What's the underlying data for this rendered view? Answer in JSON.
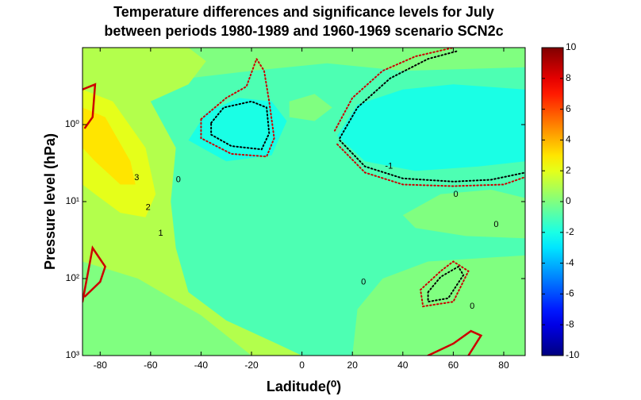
{
  "chart_data": {
    "type": "contour",
    "title": [
      "Temperature differences and significance levels for July",
      "between periods 1980-1989 and 1960-1969 scenario SCN2c"
    ],
    "x_label": "Laditude(⁰)",
    "y_label": "Pressure level (hPa)",
    "xlim": [
      -87,
      88.5
    ],
    "xticks": [
      -80,
      -60,
      -40,
      -20,
      0,
      20,
      40,
      60,
      80
    ],
    "ylim": [
      0.1,
      1000
    ],
    "y_log": true,
    "y_reversed": true,
    "yticks": [
      {
        "value": 1,
        "label": "10⁰"
      },
      {
        "value": 10,
        "label": "10¹"
      },
      {
        "value": 100,
        "label": "10²"
      },
      {
        "value": 1000,
        "label": "10³"
      }
    ],
    "colormap": "jet",
    "clim": [
      -10,
      10
    ],
    "cticks": [
      -10,
      -8,
      -6,
      -4,
      -2,
      0,
      2,
      4,
      6,
      8,
      10
    ],
    "background_value": -1,
    "regions": [
      {
        "value": 0,
        "points": [
          [
            -87,
            0.1
          ],
          [
            88.5,
            0.1
          ],
          [
            88.5,
            0.18
          ],
          [
            40,
            0.2
          ],
          [
            10,
            0.16
          ],
          [
            -20,
            0.2
          ],
          [
            -45,
            0.25
          ],
          [
            -87,
            0.3
          ]
        ]
      },
      {
        "value": 1,
        "points": [
          [
            -87,
            0.1
          ],
          [
            -45,
            0.1
          ],
          [
            -38,
            0.15
          ],
          [
            -45,
            0.3
          ],
          [
            -60,
            0.5
          ],
          [
            -50,
            2
          ],
          [
            -52,
            10
          ],
          [
            -50,
            40
          ],
          [
            -45,
            150
          ],
          [
            -30,
            350
          ],
          [
            -10,
            700
          ],
          [
            0,
            1000
          ],
          [
            -87,
            1000
          ]
        ]
      },
      {
        "value": 2,
        "points": [
          [
            -87,
            0.35
          ],
          [
            -75,
            0.5
          ],
          [
            -62,
            2
          ],
          [
            -58,
            8
          ],
          [
            -62,
            16
          ],
          [
            -72,
            14
          ],
          [
            -82,
            8
          ],
          [
            -87,
            6
          ]
        ]
      },
      {
        "value": 3,
        "points": [
          [
            -87,
            0.6
          ],
          [
            -78,
            0.8
          ],
          [
            -68,
            3
          ],
          [
            -66,
            6
          ],
          [
            -72,
            6
          ],
          [
            -82,
            3
          ],
          [
            -87,
            2
          ]
        ]
      },
      {
        "value": 0,
        "points": [
          [
            -87,
            60
          ],
          [
            -65,
            100
          ],
          [
            -40,
            300
          ],
          [
            -20,
            1000
          ],
          [
            -87,
            1000
          ]
        ]
      },
      {
        "value": -2,
        "points": [
          [
            -45,
            1.6
          ],
          [
            -38,
            0.7
          ],
          [
            -25,
            0.45
          ],
          [
            -12,
            0.5
          ],
          [
            -6,
            0.9
          ],
          [
            -12,
            2.5
          ],
          [
            -30,
            3
          ]
        ]
      },
      {
        "value": -2,
        "points": [
          [
            14,
            1.4
          ],
          [
            22,
            0.55
          ],
          [
            40,
            0.35
          ],
          [
            60,
            0.3
          ],
          [
            88.5,
            0.35
          ],
          [
            88.5,
            3
          ],
          [
            70,
            3.5
          ],
          [
            45,
            4
          ],
          [
            25,
            3
          ]
        ]
      },
      {
        "value": 0,
        "points": [
          [
            -5,
            0.5
          ],
          [
            5,
            0.4
          ],
          [
            12,
            0.6
          ],
          [
            5,
            0.9
          ],
          [
            -5,
            0.8
          ]
        ]
      },
      {
        "value": 0,
        "points": [
          [
            40,
            15
          ],
          [
            55,
            8
          ],
          [
            75,
            7
          ],
          [
            88.5,
            9
          ],
          [
            88.5,
            30
          ],
          [
            65,
            28
          ],
          [
            45,
            22
          ]
        ]
      },
      {
        "value": 0,
        "points": [
          [
            20,
            1000
          ],
          [
            22,
            250
          ],
          [
            32,
            100
          ],
          [
            50,
            60
          ],
          [
            88.5,
            50
          ],
          [
            88.5,
            1000
          ]
        ]
      }
    ],
    "significance": [
      {
        "color": "#cc0000",
        "dash": "dotted",
        "points": [
          [
            -40,
            0.85
          ],
          [
            -30,
            0.45
          ],
          [
            -22,
            0.32
          ],
          [
            -18,
            0.14
          ],
          [
            -15,
            0.2
          ],
          [
            -13,
            0.5
          ],
          [
            -11,
            1.5
          ],
          [
            -14,
            2.6
          ],
          [
            -28,
            2.4
          ],
          [
            -40,
            1.5
          ],
          [
            -40,
            0.85
          ]
        ]
      },
      {
        "color": "#000000",
        "dash": "dotted",
        "points": [
          [
            -36,
            0.95
          ],
          [
            -31,
            0.6
          ],
          [
            -20,
            0.5
          ],
          [
            -14,
            0.6
          ],
          [
            -13,
            1.3
          ],
          [
            -16,
            2.1
          ],
          [
            -28,
            1.9
          ],
          [
            -36,
            1.35
          ],
          [
            -36,
            0.95
          ]
        ]
      },
      {
        "color": "#cc0000",
        "dash": "dotted",
        "points": [
          [
            13,
            1.2
          ],
          [
            20,
            0.45
          ],
          [
            32,
            0.2
          ],
          [
            45,
            0.13
          ],
          [
            60,
            0.1
          ]
        ]
      },
      {
        "color": "#000000",
        "dash": "dotted",
        "points": [
          [
            15,
            1.5
          ],
          [
            22,
            0.6
          ],
          [
            35,
            0.25
          ],
          [
            50,
            0.14
          ],
          [
            62,
            0.11
          ]
        ]
      },
      {
        "color": "#000000",
        "dash": "dotted",
        "points": [
          [
            15,
            1.6
          ],
          [
            25,
            3.5
          ],
          [
            40,
            5
          ],
          [
            60,
            5.5
          ],
          [
            75,
            5.2
          ],
          [
            88.5,
            4.2
          ]
        ]
      },
      {
        "color": "#cc0000",
        "dash": "dotted",
        "points": [
          [
            14,
            1.8
          ],
          [
            25,
            4.2
          ],
          [
            40,
            6
          ],
          [
            60,
            6.3
          ],
          [
            80,
            6
          ],
          [
            88.5,
            4.8
          ]
        ]
      },
      {
        "color": "#000000",
        "dash": "dotted",
        "points": [
          [
            50,
            150
          ],
          [
            55,
            95
          ],
          [
            62,
            70
          ],
          [
            64,
            90
          ],
          [
            58,
            180
          ],
          [
            50,
            200
          ],
          [
            50,
            150
          ]
        ]
      },
      {
        "color": "#cc0000",
        "dash": "dotted",
        "points": [
          [
            47,
            140
          ],
          [
            55,
            80
          ],
          [
            60,
            60
          ],
          [
            66,
            80
          ],
          [
            60,
            200
          ],
          [
            48,
            230
          ],
          [
            47,
            140
          ]
        ]
      },
      {
        "color": "#cc0000",
        "dash": "solid",
        "points": [
          [
            -87,
            0.35
          ],
          [
            -82,
            0.3
          ],
          [
            -83,
            0.8
          ],
          [
            -86,
            1.1
          ]
        ]
      },
      {
        "color": "#cc0000",
        "dash": "solid",
        "points": [
          [
            -87,
            200
          ],
          [
            -83,
            40
          ],
          [
            -78,
            70
          ],
          [
            -80,
            110
          ],
          [
            -86,
            170
          ]
        ]
      },
      {
        "color": "#cc0000",
        "dash": "solid",
        "points": [
          [
            50,
            1000
          ],
          [
            60,
            700
          ],
          [
            67,
            480
          ],
          [
            71,
            550
          ],
          [
            66,
            1000
          ]
        ]
      }
    ],
    "contour_labels": [
      {
        "text": "3",
        "x": -65.5,
        "y": 4.9
      },
      {
        "text": "0",
        "x": -49,
        "y": 5.2
      },
      {
        "text": "2",
        "x": -61,
        "y": 12
      },
      {
        "text": "1",
        "x": -56,
        "y": 26
      },
      {
        "text": "-1",
        "x": 34.5,
        "y": 3.5
      },
      {
        "text": "0",
        "x": 61,
        "y": 8.1
      },
      {
        "text": "0",
        "x": 77,
        "y": 20
      },
      {
        "text": "0",
        "x": 24.4,
        "y": 112
      },
      {
        "text": "0",
        "x": 67.5,
        "y": 230
      }
    ]
  }
}
